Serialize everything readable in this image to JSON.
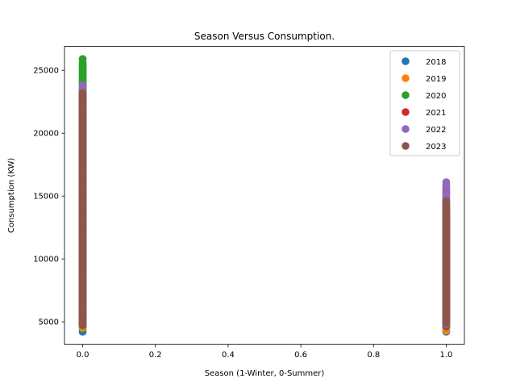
{
  "chart_data": {
    "type": "scatter",
    "title": "Season Versus Consumption.",
    "xlabel": "Season (1-Winter, 0-Summer)",
    "ylabel": "Consumption (KW)",
    "xlim": [
      -0.05,
      1.05
    ],
    "ylim": [
      3200,
      26900
    ],
    "xticks": [
      0.0,
      0.2,
      0.4,
      0.6,
      0.8,
      1.0
    ],
    "xtick_labels": [
      "0.0",
      "0.2",
      "0.4",
      "0.6",
      "0.8",
      "1.0"
    ],
    "yticks": [
      5000,
      10000,
      15000,
      20000,
      25000
    ],
    "ytick_labels": [
      "5000",
      "10000",
      "15000",
      "20000",
      "25000"
    ],
    "grid": false,
    "legend_position": "top-right",
    "series": [
      {
        "name": "2018",
        "color": "#1f77b4",
        "points": [
          {
            "x": 0,
            "y_min": 4200,
            "y_max": 22500
          },
          {
            "x": 1,
            "y_min": 4200,
            "y_max": 13500
          }
        ]
      },
      {
        "name": "2019",
        "color": "#ff7f0e",
        "points": [
          {
            "x": 0,
            "y_min": 4500,
            "y_max": 23000
          },
          {
            "x": 1,
            "y_min": 4300,
            "y_max": 13800
          }
        ]
      },
      {
        "name": "2020",
        "color": "#2ca02c",
        "points": [
          {
            "x": 0,
            "y_min": 4700,
            "y_max": 25900
          },
          {
            "x": 1,
            "y_min": 4600,
            "y_max": 14000
          }
        ]
      },
      {
        "name": "2021",
        "color": "#d62728",
        "points": [
          {
            "x": 0,
            "y_min": 4800,
            "y_max": 23500
          },
          {
            "x": 1,
            "y_min": 4700,
            "y_max": 14300
          }
        ]
      },
      {
        "name": "2022",
        "color": "#9467bd",
        "points": [
          {
            "x": 0,
            "y_min": 4900,
            "y_max": 23800
          },
          {
            "x": 1,
            "y_min": 4800,
            "y_max": 16100
          }
        ]
      },
      {
        "name": "2023",
        "color": "#8c564b",
        "points": [
          {
            "x": 0,
            "y_min": 4900,
            "y_max": 23200
          },
          {
            "x": 1,
            "y_min": 4900,
            "y_max": 14600
          }
        ]
      }
    ]
  }
}
